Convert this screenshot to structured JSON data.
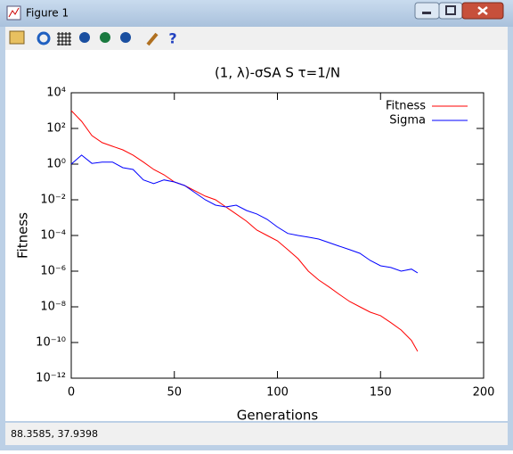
{
  "window": {
    "title": "Figure 1"
  },
  "status": "88.3585,  37.9398",
  "chart_data": {
    "type": "line",
    "title": "(1, λ)-σSA S τ=1/N",
    "xlabel": "Generations",
    "ylabel": "Fitness",
    "x": [
      0,
      5,
      10,
      15,
      20,
      25,
      30,
      35,
      40,
      45,
      50,
      55,
      60,
      65,
      70,
      75,
      80,
      85,
      90,
      95,
      100,
      105,
      110,
      115,
      120,
      125,
      130,
      135,
      140,
      145,
      150,
      155,
      160,
      165,
      168
    ],
    "series": [
      {
        "name": "Fitness",
        "color": "#ff0000",
        "values": [
          1000,
          250,
          40,
          16,
          10,
          6.3,
          3.2,
          1.3,
          0.5,
          0.25,
          0.1,
          0.063,
          0.032,
          0.016,
          0.01,
          0.004,
          0.0016,
          0.00063,
          0.0002,
          0.0001,
          5e-05,
          1.6e-05,
          5e-06,
          1e-06,
          3.2e-07,
          1.3e-07,
          5e-08,
          2e-08,
          1e-08,
          5e-09,
          3.2e-09,
          1.3e-09,
          5e-10,
          1.3e-10,
          3.2e-11
        ]
      },
      {
        "name": "Sigma",
        "color": "#0000ff",
        "values": [
          1,
          3.2,
          1.1,
          1.3,
          1.3,
          0.63,
          0.5,
          0.13,
          0.08,
          0.13,
          0.1,
          0.063,
          0.025,
          0.01,
          0.005,
          0.004,
          0.005,
          0.0025,
          0.0016,
          0.0008,
          0.0003,
          0.00013,
          0.0001,
          8e-05,
          6.3e-05,
          4e-05,
          2.5e-05,
          1.6e-05,
          1e-05,
          4e-06,
          2e-06,
          1.6e-06,
          1e-06,
          1.3e-06,
          8e-07
        ]
      }
    ],
    "xlim": [
      0,
      200
    ],
    "xticks": [
      0,
      50,
      100,
      150,
      200
    ],
    "ylim": [
      1e-12,
      10000
    ],
    "ylog": true,
    "yticks": [
      {
        "value": 1e-12,
        "label": "10⁻¹²"
      },
      {
        "value": 1e-10,
        "label": "10⁻¹⁰"
      },
      {
        "value": 1e-08,
        "label": "10⁻⁸"
      },
      {
        "value": 1e-06,
        "label": "10⁻⁶"
      },
      {
        "value": 0.0001,
        "label": "10⁻⁴"
      },
      {
        "value": 0.01,
        "label": "10⁻²"
      },
      {
        "value": 1,
        "label": "10⁰"
      },
      {
        "value": 100,
        "label": "10²"
      },
      {
        "value": 10000,
        "label": "10⁴"
      }
    ],
    "legend": "upper right"
  }
}
